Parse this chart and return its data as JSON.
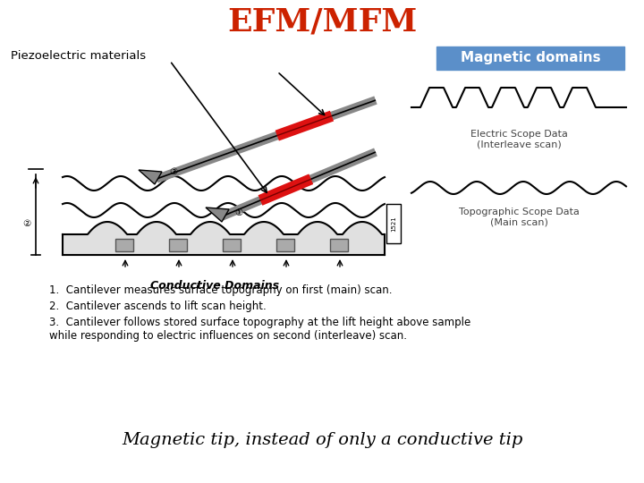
{
  "title": "EFM/MFM",
  "title_color": "#cc2200",
  "title_fontsize": 26,
  "bg_color": "#ffffff",
  "label_piezo": "Piezoelectric materials",
  "label_magnetic": "Magnetic domains",
  "label_magnetic_bg": "#5b8fc9",
  "label_conductive": "Conductive Domains",
  "label_bottom": "Magnetic tip, instead of only a conductive tip",
  "label_electric": "Electric Scope Data\n(Interleave scan)",
  "label_topo": "Topographic Scope Data\n(Main scan)",
  "bullet1": "Cantilever measures surface topography on first (main) scan.",
  "bullet2": "Cantilever ascends to lift scan height.",
  "bullet3": "Cantilever follows stored surface topography at the lift height above sample\nwhile responding to electric influences on second (interleave) scan.",
  "arm_color": "#888888",
  "red_color": "#dd1111",
  "domain_color": "#aaaaaa",
  "domain_edge": "#555555"
}
